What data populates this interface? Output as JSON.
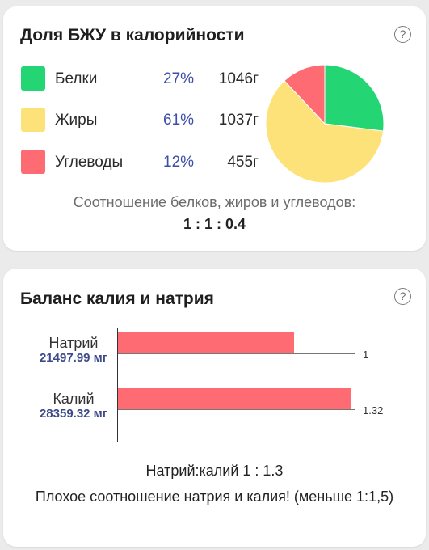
{
  "macros_card": {
    "title": "Доля БЖУ в калорийности",
    "help_symbol": "?",
    "items": [
      {
        "name": "Белки",
        "percent": "27%",
        "grams": "1046г",
        "color": "#24d673",
        "share": 27
      },
      {
        "name": "Жиры",
        "percent": "61%",
        "grams": "1037г",
        "color": "#fde27a",
        "share": 61
      },
      {
        "name": "Углеводы",
        "percent": "12%",
        "grams": "455г",
        "color": "#ff6b72",
        "share": 12
      }
    ],
    "ratio_caption": "Соотношение белков, жиров и углеводов:",
    "ratio_value": "1 : 1 : 0.4"
  },
  "electrolyte_card": {
    "title": "Баланс калия и натрия",
    "help_symbol": "?",
    "bars": [
      {
        "name": "Натрий",
        "amount": "21497.99 мг",
        "ratio_label": "1",
        "value": 1,
        "color": "#ff6b72"
      },
      {
        "name": "Калий",
        "amount": "28359.32 мг",
        "ratio_label": "1.32",
        "value": 1.32,
        "color": "#ff6b72"
      }
    ],
    "ratio_line": "Натрий:калий 1 : 1.3",
    "warning": "Плохое соотношение натрия и калия! (меньше 1:1,5)"
  }
}
